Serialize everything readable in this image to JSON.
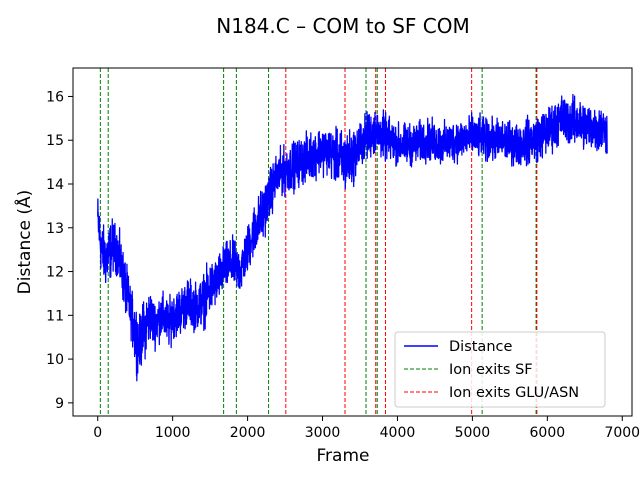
{
  "chart_data": {
    "type": "line",
    "title": "N184.C – COM to SF COM",
    "xlabel": "Frame",
    "ylabel": "Distance (Å)",
    "xlim": [
      -330,
      7130
    ],
    "ylim": [
      8.7,
      16.65
    ],
    "xticks": [
      0,
      1000,
      2000,
      3000,
      4000,
      5000,
      6000,
      7000
    ],
    "yticks": [
      9,
      10,
      11,
      12,
      13,
      14,
      15,
      16
    ],
    "grid": false,
    "legend_position": "lower-right",
    "series": [
      {
        "name": "Distance",
        "color": "#0000ff",
        "x": [
          0,
          50,
          100,
          150,
          200,
          250,
          300,
          350,
          400,
          450,
          500,
          550,
          600,
          650,
          700,
          750,
          800,
          850,
          900,
          950,
          1000,
          1100,
          1200,
          1300,
          1400,
          1500,
          1600,
          1700,
          1800,
          1900,
          2000,
          2100,
          2200,
          2300,
          2400,
          2500,
          2600,
          2700,
          2800,
          2900,
          3000,
          3100,
          3200,
          3300,
          3400,
          3500,
          3600,
          3700,
          3800,
          3900,
          4000,
          4200,
          4400,
          4600,
          4800,
          5000,
          5200,
          5400,
          5600,
          5800,
          6000,
          6200,
          6400,
          6600,
          6800
        ],
        "y": [
          13.2,
          12.5,
          12.3,
          12.4,
          12.6,
          12.5,
          12.2,
          11.8,
          11.4,
          11.0,
          10.6,
          10.3,
          10.6,
          10.8,
          11.0,
          10.8,
          10.9,
          11.0,
          10.9,
          10.8,
          11.0,
          11.1,
          11.3,
          11.2,
          11.3,
          11.6,
          11.8,
          12.1,
          12.2,
          12.0,
          12.5,
          13.0,
          13.3,
          13.8,
          14.2,
          14.3,
          14.4,
          14.5,
          14.6,
          14.7,
          14.8,
          14.7,
          14.6,
          14.5,
          14.6,
          14.9,
          15.1,
          15.2,
          15.1,
          15.0,
          14.9,
          14.9,
          15.0,
          14.9,
          15.0,
          15.1,
          15.0,
          15.0,
          14.9,
          15.0,
          15.2,
          15.5,
          15.4,
          15.3,
          15.2
        ],
        "noise": [
          0.45,
          0.45,
          0.5,
          0.5,
          0.45,
          0.4,
          0.45,
          0.45,
          0.45,
          0.4,
          0.6,
          0.45,
          0.5,
          0.5,
          0.45,
          0.4,
          0.4,
          0.4,
          0.4,
          0.4,
          0.4,
          0.4,
          0.4,
          0.4,
          0.45,
          0.45,
          0.4,
          0.4,
          0.4,
          0.4,
          0.4,
          0.45,
          0.45,
          0.4,
          0.4,
          0.4,
          0.4,
          0.4,
          0.4,
          0.4,
          0.4,
          0.4,
          0.45,
          0.55,
          0.45,
          0.4,
          0.4,
          0.4,
          0.4,
          0.35,
          0.35,
          0.35,
          0.35,
          0.35,
          0.35,
          0.35,
          0.35,
          0.35,
          0.35,
          0.4,
          0.4,
          0.4,
          0.4,
          0.4,
          0.4
        ]
      }
    ],
    "vlines": [
      {
        "label": "Ion exits SF",
        "color": "#008000",
        "x": [
          35,
          140,
          1680,
          1850,
          2280,
          3580,
          3730,
          5130,
          5850
        ]
      },
      {
        "label": "Ion exits GLU/ASN",
        "color": "#ff0000",
        "x": [
          2510,
          3300,
          3710,
          3840,
          4990,
          5860
        ]
      }
    ],
    "legend": [
      {
        "label": "Distance",
        "color": "#0000ff",
        "style": "solid"
      },
      {
        "label": "Ion exits SF",
        "color": "#008000",
        "style": "dashed"
      },
      {
        "label": "Ion exits GLU/ASN",
        "color": "#ff0000",
        "style": "dashed"
      }
    ]
  }
}
